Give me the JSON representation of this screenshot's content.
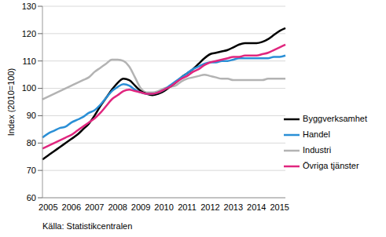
{
  "chart_data": {
    "type": "line",
    "y_label": "Index (2010=100)",
    "source": "Källa: Statistikcentralen",
    "categories": [
      null,
      "2005",
      null,
      null,
      null,
      "2006",
      null,
      null,
      null,
      "2007",
      null,
      null,
      null,
      "2008",
      null,
      null,
      null,
      "2009",
      null,
      null,
      null,
      "2010",
      null,
      null,
      null,
      "2011",
      null,
      null,
      null,
      "2012",
      null,
      null,
      null,
      "2013",
      null,
      null,
      null,
      "2014",
      null,
      null,
      null,
      "2015",
      null
    ],
    "series": [
      {
        "name": "Industri",
        "color": "#b3b3b3",
        "values": [
          96,
          97,
          98,
          99,
          100,
          101,
          102,
          103,
          104,
          106,
          107.5,
          109,
          110.5,
          110.5,
          110,
          108,
          104,
          100,
          98.5,
          98.5,
          99,
          100,
          100.5,
          101,
          102.5,
          103.5,
          104,
          104.5,
          105,
          104.5,
          104,
          103.5,
          103.5,
          103,
          103,
          103,
          103,
          103,
          103,
          103.5,
          103.5,
          103.5,
          103.5
        ]
      },
      {
        "name": "Byggverksamhet",
        "color": "#000000",
        "values": [
          74,
          75.5,
          77,
          78.5,
          80,
          81.5,
          83,
          85,
          87,
          90,
          93.5,
          96.5,
          99.5,
          102,
          103.5,
          103,
          101,
          99,
          98,
          97.5,
          98,
          99,
          100.5,
          102,
          104,
          105.5,
          107,
          109,
          111,
          112.5,
          113,
          113.5,
          114,
          115,
          116,
          116.5,
          116.5,
          116.5,
          117,
          118,
          119.5,
          121,
          122
        ]
      },
      {
        "name": "Handel",
        "color": "#2a8fd6",
        "values": [
          82,
          83.5,
          84.5,
          85.5,
          86,
          87.5,
          88.5,
          89.5,
          91,
          92,
          94,
          96.5,
          99,
          100.5,
          101.5,
          101,
          99.5,
          98.5,
          98,
          98,
          98.5,
          99.5,
          101,
          102.5,
          104,
          105.5,
          107,
          108,
          109,
          109.5,
          109.5,
          110,
          110,
          110.5,
          111,
          111,
          111,
          111,
          111,
          111,
          111.5,
          111.5,
          112
        ]
      },
      {
        "name": "Övriga tjänster",
        "color": "#e0267e",
        "values": [
          78,
          79,
          80,
          81,
          82,
          83,
          84.5,
          86,
          87.5,
          89,
          91,
          93.5,
          96,
          97.5,
          99,
          99.5,
          99,
          98.5,
          98,
          98,
          98.5,
          99.5,
          100.5,
          102,
          103.5,
          104.5,
          106,
          107,
          108.5,
          109.5,
          110,
          110.5,
          111,
          111.5,
          111.5,
          112,
          112,
          112,
          112.5,
          113,
          114,
          115,
          116
        ]
      }
    ],
    "ylim": [
      60,
      130
    ],
    "yticks": [
      60,
      70,
      80,
      90,
      100,
      110,
      120,
      130
    ],
    "grid": true,
    "legend": "right"
  }
}
